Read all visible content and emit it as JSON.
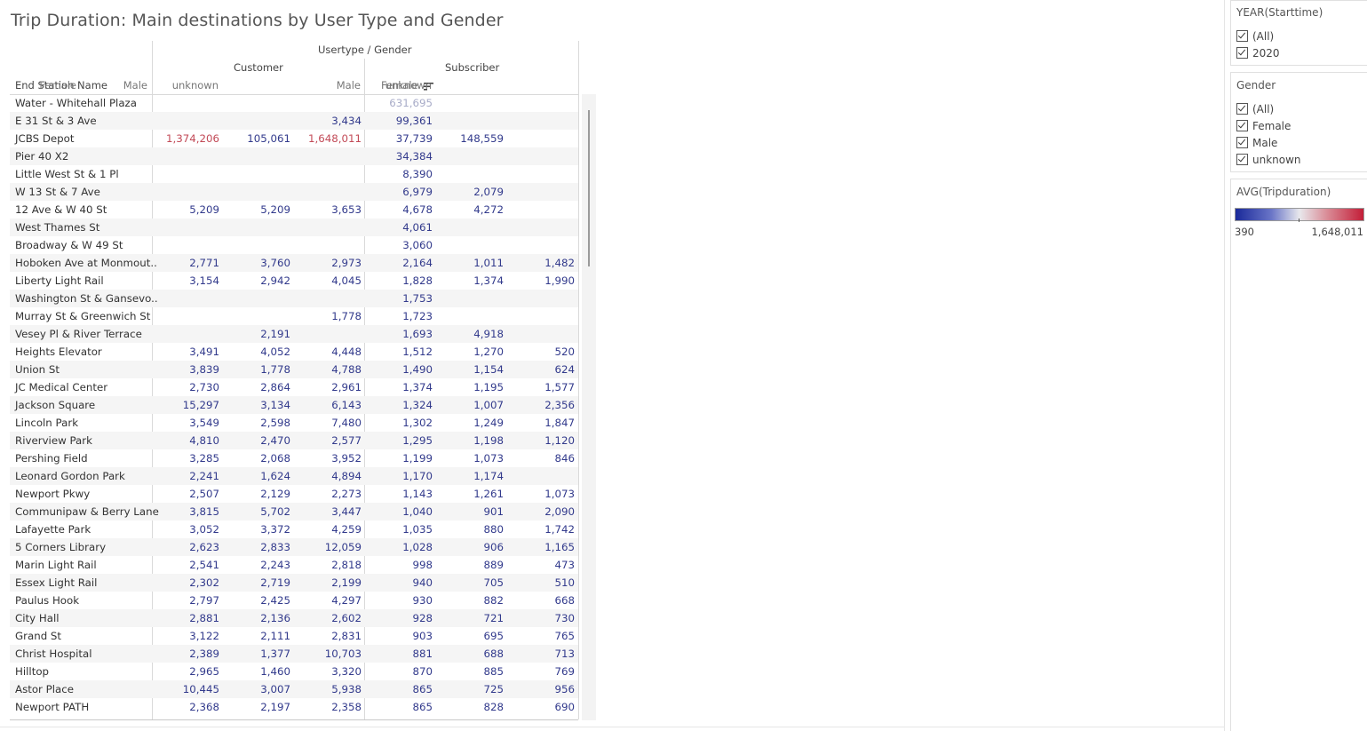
{
  "title": "Trip Duration: Main destinations by User Type and Gender",
  "header": {
    "group_label": "Usertype / Gender",
    "customer": "Customer",
    "subscriber": "Subscriber",
    "row_header": "End Station Name",
    "columns": [
      "Female",
      "Male",
      "unknown",
      "Female",
      "Male",
      "unknown"
    ]
  },
  "rows": [
    {
      "name": "Water - Whitehall Plaza",
      "v": [
        "",
        "",
        "",
        "631,695",
        "",
        ""
      ]
    },
    {
      "name": "E 31 St & 3 Ave",
      "v": [
        "",
        "",
        "3,434",
        "99,361",
        "",
        ""
      ]
    },
    {
      "name": "JCBS Depot",
      "v": [
        "1,374,206",
        "105,061",
        "1,648,011",
        "37,739",
        "148,559",
        ""
      ]
    },
    {
      "name": "Pier 40 X2",
      "v": [
        "",
        "",
        "",
        "34,384",
        "",
        ""
      ]
    },
    {
      "name": "Little West St & 1 Pl",
      "v": [
        "",
        "",
        "",
        "8,390",
        "",
        ""
      ]
    },
    {
      "name": "W 13 St & 7 Ave",
      "v": [
        "",
        "",
        "",
        "6,979",
        "2,079",
        ""
      ]
    },
    {
      "name": "12 Ave & W 40 St",
      "v": [
        "5,209",
        "5,209",
        "3,653",
        "4,678",
        "4,272",
        ""
      ]
    },
    {
      "name": "West Thames St",
      "v": [
        "",
        "",
        "",
        "4,061",
        "",
        ""
      ]
    },
    {
      "name": "Broadway & W 49 St",
      "v": [
        "",
        "",
        "",
        "3,060",
        "",
        ""
      ]
    },
    {
      "name": "Hoboken Ave at Monmout..",
      "v": [
        "2,771",
        "3,760",
        "2,973",
        "2,164",
        "1,011",
        "1,482"
      ]
    },
    {
      "name": "Liberty Light Rail",
      "v": [
        "3,154",
        "2,942",
        "4,045",
        "1,828",
        "1,374",
        "1,990"
      ]
    },
    {
      "name": "Washington St & Gansevo..",
      "v": [
        "",
        "",
        "",
        "1,753",
        "",
        ""
      ]
    },
    {
      "name": "Murray St & Greenwich St",
      "v": [
        "",
        "",
        "1,778",
        "1,723",
        "",
        ""
      ]
    },
    {
      "name": "Vesey Pl & River Terrace",
      "v": [
        "",
        "2,191",
        "",
        "1,693",
        "4,918",
        ""
      ]
    },
    {
      "name": "Heights Elevator",
      "v": [
        "3,491",
        "4,052",
        "4,448",
        "1,512",
        "1,270",
        "520"
      ]
    },
    {
      "name": "Union St",
      "v": [
        "3,839",
        "1,778",
        "4,788",
        "1,490",
        "1,154",
        "624"
      ]
    },
    {
      "name": "JC Medical Center",
      "v": [
        "2,730",
        "2,864",
        "2,961",
        "1,374",
        "1,195",
        "1,577"
      ]
    },
    {
      "name": "Jackson Square",
      "v": [
        "15,297",
        "3,134",
        "6,143",
        "1,324",
        "1,007",
        "2,356"
      ]
    },
    {
      "name": "Lincoln Park",
      "v": [
        "3,549",
        "2,598",
        "7,480",
        "1,302",
        "1,249",
        "1,847"
      ]
    },
    {
      "name": "Riverview Park",
      "v": [
        "4,810",
        "2,470",
        "2,577",
        "1,295",
        "1,198",
        "1,120"
      ]
    },
    {
      "name": "Pershing Field",
      "v": [
        "3,285",
        "2,068",
        "3,952",
        "1,199",
        "1,073",
        "846"
      ]
    },
    {
      "name": "Leonard Gordon Park",
      "v": [
        "2,241",
        "1,624",
        "4,894",
        "1,170",
        "1,174",
        ""
      ]
    },
    {
      "name": "Newport Pkwy",
      "v": [
        "2,507",
        "2,129",
        "2,273",
        "1,143",
        "1,261",
        "1,073"
      ]
    },
    {
      "name": "Communipaw & Berry Lane",
      "v": [
        "3,815",
        "5,702",
        "3,447",
        "1,040",
        "901",
        "2,090"
      ]
    },
    {
      "name": "Lafayette Park",
      "v": [
        "3,052",
        "3,372",
        "4,259",
        "1,035",
        "880",
        "1,742"
      ]
    },
    {
      "name": "5 Corners Library",
      "v": [
        "2,623",
        "2,833",
        "12,059",
        "1,028",
        "906",
        "1,165"
      ]
    },
    {
      "name": "Marin Light Rail",
      "v": [
        "2,541",
        "2,243",
        "2,818",
        "998",
        "889",
        "473"
      ]
    },
    {
      "name": "Essex Light Rail",
      "v": [
        "2,302",
        "2,719",
        "2,199",
        "940",
        "705",
        "510"
      ]
    },
    {
      "name": "Paulus Hook",
      "v": [
        "2,797",
        "2,425",
        "4,297",
        "930",
        "882",
        "668"
      ]
    },
    {
      "name": "City Hall",
      "v": [
        "2,881",
        "2,136",
        "2,602",
        "928",
        "721",
        "730"
      ]
    },
    {
      "name": "Grand St",
      "v": [
        "3,122",
        "2,111",
        "2,831",
        "903",
        "695",
        "765"
      ]
    },
    {
      "name": "Christ Hospital",
      "v": [
        "2,389",
        "1,377",
        "10,703",
        "881",
        "688",
        "713"
      ]
    },
    {
      "name": "Hilltop",
      "v": [
        "2,965",
        "1,460",
        "3,320",
        "870",
        "885",
        "769"
      ]
    },
    {
      "name": "Astor Place",
      "v": [
        "10,445",
        "3,007",
        "5,938",
        "865",
        "725",
        "956"
      ]
    },
    {
      "name": "Newport PATH",
      "v": [
        "2,368",
        "2,197",
        "2,358",
        "865",
        "828",
        "690"
      ]
    }
  ],
  "colors": {
    "default_value": "#323a8c",
    "high_value": "#c24a57",
    "low_contrast_value": "#a8acc8"
  },
  "filters": {
    "year": {
      "title": "YEAR(Starttime)",
      "options": [
        "(All)",
        "2020"
      ]
    },
    "gender": {
      "title": "Gender",
      "options": [
        "(All)",
        "Female",
        "Male",
        "unknown"
      ]
    }
  },
  "legend": {
    "title": "AVG(Tripduration)",
    "min_label": "390",
    "max_label": "1,648,011"
  },
  "icons": {
    "sort": "sort-descending-icon",
    "checkbox": "checkbox-checked-icon"
  }
}
